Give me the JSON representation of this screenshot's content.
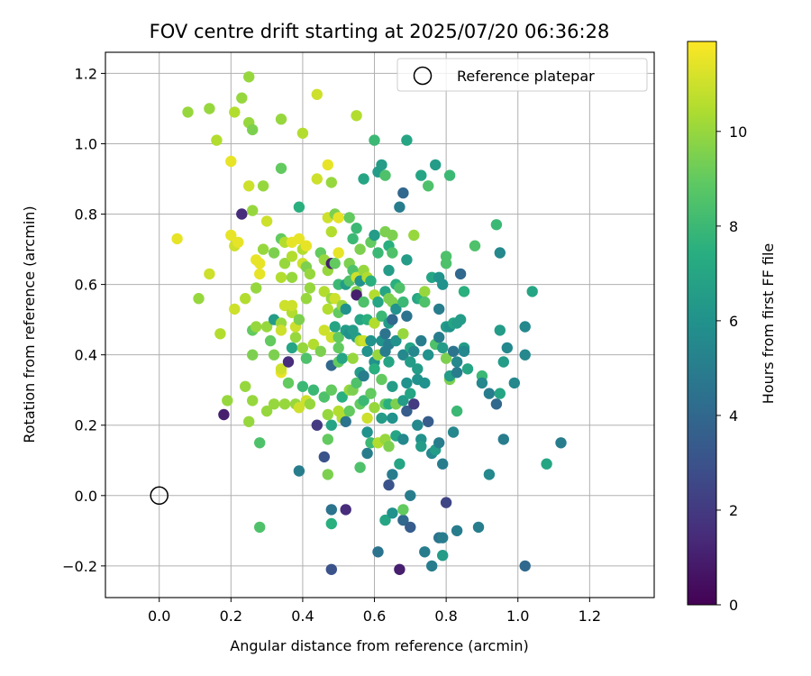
{
  "chart_data": {
    "type": "scatter",
    "title": "FOV centre drift starting at 2025/07/20 06:36:28",
    "xlabel": "Angular distance from reference (arcmin)",
    "ylabel": "Rotation from reference (arcmin)",
    "xlim": [
      -0.15,
      1.38
    ],
    "ylim": [
      -0.29,
      1.26
    ],
    "x_ticks": [
      0.0,
      0.2,
      0.4,
      0.6,
      0.8,
      1.0,
      1.2
    ],
    "x_tick_labels": [
      "0.0",
      "0.2",
      "0.4",
      "0.6",
      "0.8",
      "1.0",
      "1.2"
    ],
    "y_ticks": [
      -0.2,
      0.0,
      0.2,
      0.4,
      0.6,
      0.8,
      1.0,
      1.2
    ],
    "y_tick_labels": [
      "−0.2",
      "0.0",
      "0.2",
      "0.4",
      "0.6",
      "0.8",
      "1.0",
      "1.2"
    ],
    "grid": true,
    "legend": {
      "position": "top-right",
      "entries": [
        "Reference platepar"
      ]
    },
    "reference_point": {
      "x": 0.0,
      "y": 0.0
    },
    "colorbar": {
      "label": "Hours from first FF file",
      "range": [
        0,
        11.9
      ],
      "ticks": [
        0,
        2,
        4,
        6,
        8,
        10
      ],
      "tick_labels": [
        "0",
        "2",
        "4",
        "6",
        "8",
        "10"
      ],
      "colormap": "viridis"
    },
    "points": [
      [
        0.05,
        0.73,
        11.5
      ],
      [
        0.08,
        1.09,
        10
      ],
      [
        0.11,
        0.56,
        10
      ],
      [
        0.14,
        1.1,
        10
      ],
      [
        0.14,
        0.63,
        11
      ],
      [
        0.16,
        1.01,
        10.5
      ],
      [
        0.17,
        0.46,
        10.5
      ],
      [
        0.18,
        0.23,
        1
      ],
      [
        0.19,
        0.27,
        10
      ],
      [
        0.2,
        0.95,
        11.5
      ],
      [
        0.2,
        0.74,
        11.5
      ],
      [
        0.21,
        1.09,
        10.5
      ],
      [
        0.21,
        0.71,
        11
      ],
      [
        0.22,
        0.72,
        11.5
      ],
      [
        0.21,
        0.53,
        11
      ],
      [
        0.23,
        1.13,
        10
      ],
      [
        0.23,
        0.8,
        1.5
      ],
      [
        0.24,
        0.31,
        10
      ],
      [
        0.24,
        0.56,
        10.5
      ],
      [
        0.25,
        1.19,
        10
      ],
      [
        0.25,
        1.06,
        10
      ],
      [
        0.26,
        1.04,
        9.5
      ],
      [
        0.25,
        0.88,
        11
      ],
      [
        0.26,
        0.81,
        10
      ],
      [
        0.26,
        0.47,
        9
      ],
      [
        0.26,
        0.4,
        9.5
      ],
      [
        0.25,
        0.21,
        10
      ],
      [
        0.26,
        0.27,
        10
      ],
      [
        0.27,
        0.67,
        11.5
      ],
      [
        0.28,
        0.66,
        11.5
      ],
      [
        0.28,
        0.63,
        11.5
      ],
      [
        0.27,
        0.59,
        10
      ],
      [
        0.27,
        0.48,
        10
      ],
      [
        0.28,
        0.15,
        8.5
      ],
      [
        0.28,
        -0.09,
        8.5
      ],
      [
        0.29,
        0.88,
        10
      ],
      [
        0.29,
        0.7,
        10
      ],
      [
        0.3,
        0.78,
        11
      ],
      [
        0.3,
        0.48,
        10
      ],
      [
        0.3,
        0.24,
        10
      ],
      [
        0.31,
        0.44,
        9
      ],
      [
        0.32,
        0.69,
        9.5
      ],
      [
        0.32,
        0.5,
        6.5
      ],
      [
        0.32,
        0.4,
        9.5
      ],
      [
        0.32,
        0.26,
        10
      ],
      [
        0.34,
        0.35,
        11.5
      ],
      [
        0.34,
        1.07,
        10
      ],
      [
        0.34,
        0.93,
        9
      ],
      [
        0.34,
        0.73,
        9
      ],
      [
        0.34,
        0.62,
        10.5
      ],
      [
        0.34,
        0.49,
        10
      ],
      [
        0.34,
        0.47,
        11
      ],
      [
        0.34,
        0.36,
        11
      ],
      [
        0.35,
        0.26,
        10
      ],
      [
        0.35,
        0.72,
        10.5
      ],
      [
        0.35,
        0.66,
        10
      ],
      [
        0.35,
        0.54,
        11
      ],
      [
        0.36,
        0.38,
        1.5
      ],
      [
        0.36,
        0.32,
        9
      ],
      [
        0.37,
        0.52,
        10.5
      ],
      [
        0.37,
        0.72,
        11.5
      ],
      [
        0.37,
        0.68,
        10.5
      ],
      [
        0.37,
        0.62,
        10
      ],
      [
        0.37,
        0.54,
        11
      ],
      [
        0.38,
        0.45,
        10
      ],
      [
        0.37,
        0.42,
        7
      ],
      [
        0.38,
        0.48,
        11
      ],
      [
        0.38,
        0.26,
        10
      ],
      [
        0.39,
        0.5,
        9.5
      ],
      [
        0.39,
        0.25,
        11
      ],
      [
        0.39,
        0.82,
        7.5
      ],
      [
        0.39,
        0.73,
        11.5
      ],
      [
        0.39,
        0.07,
        5
      ],
      [
        0.4,
        1.03,
        10.5
      ],
      [
        0.4,
        0.7,
        10.5
      ],
      [
        0.4,
        0.66,
        11
      ],
      [
        0.4,
        0.42,
        10
      ],
      [
        0.4,
        0.31,
        8
      ],
      [
        0.41,
        0.71,
        11.5
      ],
      [
        0.41,
        0.65,
        9.5
      ],
      [
        0.41,
        0.56,
        10
      ],
      [
        0.41,
        0.39,
        8.5
      ],
      [
        0.41,
        0.27,
        11
      ],
      [
        0.42,
        0.26,
        10
      ],
      [
        0.42,
        0.63,
        10
      ],
      [
        0.42,
        0.59,
        10
      ],
      [
        0.43,
        0.43,
        10.5
      ],
      [
        0.43,
        0.3,
        8
      ],
      [
        0.44,
        0.2,
        2
      ],
      [
        0.44,
        1.14,
        11
      ],
      [
        0.44,
        0.9,
        11
      ],
      [
        0.45,
        0.69,
        9
      ],
      [
        0.45,
        0.41,
        9.5
      ],
      [
        0.46,
        0.28,
        8.5
      ],
      [
        0.46,
        0.11,
        3
      ],
      [
        0.46,
        0.67,
        10
      ],
      [
        0.46,
        0.47,
        11
      ],
      [
        0.46,
        0.58,
        10.5
      ],
      [
        0.47,
        0.94,
        11.5
      ],
      [
        0.47,
        0.79,
        11
      ],
      [
        0.47,
        0.64,
        10
      ],
      [
        0.47,
        0.53,
        10.5
      ],
      [
        0.47,
        0.23,
        10
      ],
      [
        0.47,
        0.16,
        9
      ],
      [
        0.47,
        0.06,
        9.5
      ],
      [
        0.48,
        0.89,
        10
      ],
      [
        0.48,
        0.75,
        10.5
      ],
      [
        0.48,
        0.66,
        1
      ],
      [
        0.48,
        0.56,
        10
      ],
      [
        0.48,
        0.45,
        11
      ],
      [
        0.48,
        0.37,
        4
      ],
      [
        0.48,
        0.3,
        9
      ],
      [
        0.48,
        0.2,
        7
      ],
      [
        0.48,
        -0.04,
        4.5
      ],
      [
        0.48,
        -0.08,
        7.5
      ],
      [
        0.48,
        -0.21,
        3
      ],
      [
        0.49,
        0.8,
        9.5
      ],
      [
        0.49,
        0.66,
        9
      ],
      [
        0.49,
        0.56,
        11
      ],
      [
        0.49,
        0.48,
        7
      ],
      [
        0.5,
        0.79,
        11.5
      ],
      [
        0.5,
        0.69,
        11.5
      ],
      [
        0.5,
        0.6,
        8
      ],
      [
        0.5,
        0.52,
        9
      ],
      [
        0.5,
        0.45,
        9
      ],
      [
        0.5,
        0.42,
        9
      ],
      [
        0.5,
        0.38,
        9
      ],
      [
        0.5,
        0.24,
        10.5
      ],
      [
        0.51,
        0.54,
        10
      ],
      [
        0.51,
        0.39,
        7
      ],
      [
        0.51,
        0.28,
        7.5
      ],
      [
        0.51,
        0.22,
        10.5
      ],
      [
        0.52,
        0.6,
        6.5
      ],
      [
        0.52,
        0.53,
        6
      ],
      [
        0.52,
        0.47,
        6.5
      ],
      [
        0.52,
        0.21,
        4.5
      ],
      [
        0.52,
        -0.04,
        1.5
      ],
      [
        0.53,
        0.79,
        9
      ],
      [
        0.53,
        0.66,
        9.5
      ],
      [
        0.53,
        0.61,
        8.5
      ],
      [
        0.53,
        0.46,
        6
      ],
      [
        0.53,
        0.3,
        10
      ],
      [
        0.53,
        0.24,
        9
      ],
      [
        0.54,
        0.73,
        8
      ],
      [
        0.54,
        0.64,
        8.5
      ],
      [
        0.54,
        0.47,
        6.5
      ],
      [
        0.54,
        0.39,
        10
      ],
      [
        0.54,
        0.3,
        9.5
      ],
      [
        0.55,
        0.58,
        9.5
      ],
      [
        0.55,
        0.62,
        11
      ],
      [
        0.55,
        0.57,
        1
      ],
      [
        0.55,
        0.45,
        6.5
      ],
      [
        0.55,
        0.32,
        8.5
      ],
      [
        0.55,
        1.08,
        10.5
      ],
      [
        0.55,
        0.76,
        8
      ],
      [
        0.56,
        0.7,
        9.5
      ],
      [
        0.56,
        0.61,
        6
      ],
      [
        0.56,
        0.5,
        7
      ],
      [
        0.56,
        0.44,
        10.5
      ],
      [
        0.56,
        0.35,
        6.5
      ],
      [
        0.56,
        0.26,
        9
      ],
      [
        0.56,
        0.08,
        8.5
      ],
      [
        0.57,
        0.9,
        7
      ],
      [
        0.57,
        0.64,
        10
      ],
      [
        0.57,
        0.55,
        8.5
      ],
      [
        0.57,
        0.44,
        11
      ],
      [
        0.57,
        0.34,
        5
      ],
      [
        0.57,
        0.27,
        8
      ],
      [
        0.58,
        0.62,
        10.5
      ],
      [
        0.58,
        0.5,
        7.5
      ],
      [
        0.58,
        0.41,
        6
      ],
      [
        0.58,
        0.22,
        11
      ],
      [
        0.58,
        0.18,
        6
      ],
      [
        0.58,
        0.12,
        5
      ],
      [
        0.59,
        0.72,
        9
      ],
      [
        0.59,
        0.61,
        7.5
      ],
      [
        0.59,
        0.44,
        6
      ],
      [
        0.59,
        0.29,
        9
      ],
      [
        0.59,
        0.15,
        8
      ],
      [
        0.6,
        0.74,
        6.5
      ],
      [
        0.6,
        0.57,
        10.5
      ],
      [
        0.6,
        0.49,
        10.5
      ],
      [
        0.6,
        0.38,
        6
      ],
      [
        0.6,
        0.36,
        7.5
      ],
      [
        0.6,
        0.25,
        10
      ],
      [
        0.6,
        1.01,
        8
      ],
      [
        0.61,
        0.92,
        6.5
      ],
      [
        0.61,
        0.69,
        8
      ],
      [
        0.61,
        0.55,
        7
      ],
      [
        0.61,
        0.4,
        10
      ],
      [
        0.61,
        0.15,
        10.5
      ],
      [
        0.61,
        -0.16,
        4.5
      ],
      [
        0.62,
        0.94,
        6.5
      ],
      [
        0.62,
        0.51,
        8
      ],
      [
        0.62,
        0.44,
        6
      ],
      [
        0.62,
        0.33,
        9
      ],
      [
        0.62,
        0.22,
        6.5
      ],
      [
        0.63,
        0.91,
        8.5
      ],
      [
        0.63,
        0.75,
        9.5
      ],
      [
        0.63,
        0.58,
        7
      ],
      [
        0.63,
        0.46,
        4.5
      ],
      [
        0.63,
        0.41,
        5
      ],
      [
        0.63,
        0.26,
        9
      ],
      [
        0.63,
        0.16,
        10
      ],
      [
        0.63,
        -0.07,
        7
      ],
      [
        0.64,
        0.71,
        7.5
      ],
      [
        0.64,
        0.64,
        6.5
      ],
      [
        0.64,
        0.56,
        9.5
      ],
      [
        0.64,
        0.49,
        6.5
      ],
      [
        0.64,
        0.43,
        5
      ],
      [
        0.64,
        0.38,
        7
      ],
      [
        0.64,
        0.26,
        7.5
      ],
      [
        0.64,
        0.14,
        9.5
      ],
      [
        0.64,
        0.03,
        3
      ],
      [
        0.65,
        0.06,
        5
      ],
      [
        0.65,
        0.74,
        9.5
      ],
      [
        0.65,
        0.69,
        8.5
      ],
      [
        0.65,
        0.55,
        9.5
      ],
      [
        0.65,
        0.5,
        4
      ],
      [
        0.65,
        0.31,
        6.5
      ],
      [
        0.65,
        0.22,
        6
      ],
      [
        0.65,
        -0.05,
        6
      ],
      [
        0.66,
        0.6,
        7.5
      ],
      [
        0.66,
        0.53,
        6
      ],
      [
        0.66,
        0.44,
        6
      ],
      [
        0.66,
        0.26,
        9.5
      ],
      [
        0.66,
        0.17,
        7
      ],
      [
        0.67,
        0.82,
        5
      ],
      [
        0.67,
        0.59,
        8.5
      ],
      [
        0.67,
        0.09,
        7
      ],
      [
        0.67,
        -0.21,
        1
      ],
      [
        0.68,
        0.86,
        4
      ],
      [
        0.68,
        0.55,
        8
      ],
      [
        0.68,
        0.46,
        10
      ],
      [
        0.68,
        0.4,
        5.5
      ],
      [
        0.68,
        0.27,
        6.5
      ],
      [
        0.68,
        0.16,
        5.5
      ],
      [
        0.68,
        -0.07,
        4
      ],
      [
        0.68,
        -0.04,
        9
      ],
      [
        0.69,
        1.01,
        7
      ],
      [
        0.69,
        0.67,
        6.5
      ],
      [
        0.69,
        0.51,
        4.5
      ],
      [
        0.69,
        0.32,
        6
      ],
      [
        0.69,
        0.24,
        3.5
      ],
      [
        0.7,
        0.38,
        6.5
      ],
      [
        0.7,
        0.29,
        7
      ],
      [
        0.7,
        0.42,
        7
      ],
      [
        0.7,
        0.0,
        5
      ],
      [
        0.7,
        -0.09,
        3.5
      ],
      [
        0.71,
        0.41,
        5.5
      ],
      [
        0.71,
        0.26,
        2
      ],
      [
        0.71,
        0.74,
        10
      ],
      [
        0.72,
        0.56,
        7
      ],
      [
        0.72,
        0.36,
        6.5
      ],
      [
        0.72,
        0.33,
        6
      ],
      [
        0.72,
        0.2,
        5.5
      ],
      [
        0.73,
        0.91,
        7
      ],
      [
        0.73,
        0.56,
        7.5
      ],
      [
        0.73,
        0.44,
        5
      ],
      [
        0.73,
        0.16,
        6
      ],
      [
        0.73,
        0.14,
        6.5
      ],
      [
        0.74,
        0.32,
        6
      ],
      [
        0.74,
        -0.16,
        5
      ],
      [
        0.74,
        0.58,
        10
      ],
      [
        0.74,
        0.55,
        8.5
      ],
      [
        0.75,
        0.88,
        8.5
      ],
      [
        0.75,
        0.4,
        6
      ],
      [
        0.75,
        0.21,
        3.5
      ],
      [
        0.76,
        0.62,
        7
      ],
      [
        0.76,
        0.12,
        5.5
      ],
      [
        0.76,
        -0.2,
        5
      ],
      [
        0.77,
        0.94,
        6.5
      ],
      [
        0.77,
        0.43,
        8.5
      ],
      [
        0.77,
        0.13,
        6.5
      ],
      [
        0.78,
        0.62,
        6
      ],
      [
        0.78,
        0.53,
        5
      ],
      [
        0.78,
        0.45,
        5
      ],
      [
        0.78,
        0.15,
        5
      ],
      [
        0.78,
        -0.12,
        4.5
      ],
      [
        0.79,
        0.6,
        6
      ],
      [
        0.79,
        0.42,
        6.5
      ],
      [
        0.79,
        0.09,
        5
      ],
      [
        0.79,
        -0.17,
        6.5
      ],
      [
        0.79,
        -0.12,
        5
      ],
      [
        0.8,
        0.68,
        8.5
      ],
      [
        0.8,
        0.66,
        8.5
      ],
      [
        0.8,
        0.48,
        6.5
      ],
      [
        0.8,
        0.39,
        9.5
      ],
      [
        0.8,
        -0.02,
        2.5
      ],
      [
        0.81,
        0.91,
        8
      ],
      [
        0.81,
        0.48,
        6
      ],
      [
        0.81,
        0.33,
        9.5
      ],
      [
        0.81,
        0.34,
        6.5
      ],
      [
        0.82,
        0.49,
        7
      ],
      [
        0.82,
        0.41,
        4.5
      ],
      [
        0.82,
        0.18,
        5.5
      ],
      [
        0.83,
        0.49,
        6.5
      ],
      [
        0.83,
        0.38,
        5.5
      ],
      [
        0.83,
        0.35,
        5
      ],
      [
        0.83,
        0.24,
        8
      ],
      [
        0.83,
        -0.1,
        5
      ],
      [
        0.84,
        0.63,
        4
      ],
      [
        0.84,
        0.5,
        6.5
      ],
      [
        0.85,
        0.58,
        7.5
      ],
      [
        0.85,
        0.42,
        6.5
      ],
      [
        0.85,
        0.41,
        5.5
      ],
      [
        0.86,
        0.36,
        7
      ],
      [
        0.88,
        0.71,
        8.5
      ],
      [
        0.89,
        -0.09,
        5
      ],
      [
        0.9,
        0.34,
        8
      ],
      [
        0.9,
        0.32,
        5.5
      ],
      [
        0.92,
        0.29,
        5
      ],
      [
        0.92,
        0.06,
        5.5
      ],
      [
        0.94,
        0.77,
        8
      ],
      [
        0.94,
        0.26,
        4
      ],
      [
        0.95,
        0.69,
        5.5
      ],
      [
        0.95,
        0.47,
        6.5
      ],
      [
        0.95,
        0.29,
        7
      ],
      [
        0.96,
        0.38,
        6.5
      ],
      [
        0.96,
        0.16,
        5
      ],
      [
        0.97,
        0.42,
        5.5
      ],
      [
        0.99,
        0.32,
        5.5
      ],
      [
        1.02,
        0.48,
        5.5
      ],
      [
        1.02,
        0.4,
        5.5
      ],
      [
        1.02,
        -0.2,
        4
      ],
      [
        1.04,
        0.58,
        7
      ],
      [
        1.08,
        0.09,
        7
      ],
      [
        1.12,
        0.15,
        5
      ]
    ]
  }
}
